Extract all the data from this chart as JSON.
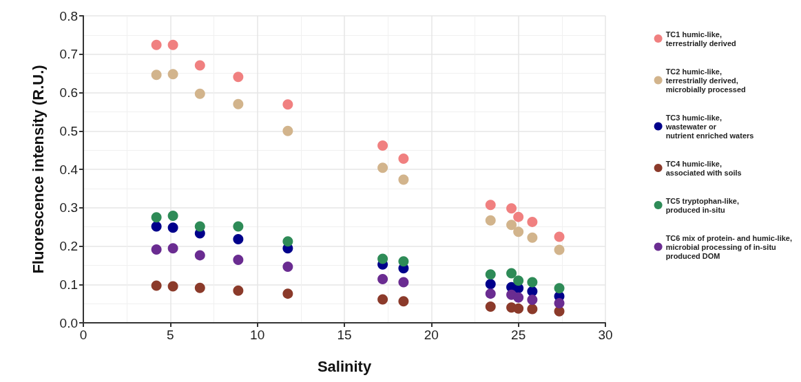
{
  "chart_data": {
    "type": "scatter",
    "xlabel": "Salinity",
    "ylabel": "Fluorescence intensity (R.U.)",
    "x": [
      4.2,
      5.15,
      6.7,
      8.9,
      11.75,
      17.2,
      18.4,
      23.4,
      24.6,
      25.0,
      25.8,
      27.35
    ],
    "series": [
      {
        "name": "TC1 humic-like,\nterrestrially derived",
        "color": "#f08080",
        "values": [
          0.724,
          0.724,
          0.671,
          0.641,
          0.569,
          0.462,
          0.428,
          0.307,
          0.298,
          0.276,
          0.263,
          0.224
        ]
      },
      {
        "name": "TC2 humic-like,\nterrestrially derived,\nmicrobially processed",
        "color": "#d2b48c",
        "values": [
          0.646,
          0.648,
          0.597,
          0.57,
          0.5,
          0.404,
          0.373,
          0.267,
          0.255,
          0.237,
          0.222,
          0.19
        ]
      },
      {
        "name": "TC3 humic-like,\nwastewater or\nnutrient enriched waters",
        "color": "#00008b",
        "values": [
          0.251,
          0.248,
          0.233,
          0.218,
          0.194,
          0.152,
          0.142,
          0.101,
          0.093,
          0.09,
          0.082,
          0.069
        ]
      },
      {
        "name": "TC4 humic-like,\nassociated with soils",
        "color": "#8b3a2a",
        "values": [
          0.097,
          0.095,
          0.091,
          0.084,
          0.076,
          0.061,
          0.056,
          0.042,
          0.04,
          0.037,
          0.036,
          0.03
        ]
      },
      {
        "name": "TC5 tryptophan-like,\nproduced in-situ",
        "color": "#2e8b57",
        "values": [
          0.275,
          0.279,
          0.251,
          0.251,
          0.212,
          0.167,
          0.16,
          0.126,
          0.129,
          0.11,
          0.106,
          0.09
        ]
      },
      {
        "name": "TC6 mix of protein- and humic-like,\nmicrobial processing of in-situ\nproduced DOM",
        "color": "#6a2c91",
        "values": [
          0.191,
          0.194,
          0.176,
          0.164,
          0.146,
          0.114,
          0.106,
          0.076,
          0.073,
          0.066,
          0.06,
          0.051
        ]
      }
    ],
    "xlim": [
      0,
      30
    ],
    "xticks": [
      0,
      5,
      10,
      15,
      20,
      25,
      30
    ],
    "ylim": [
      0,
      0.8
    ],
    "yticks": [
      {
        "value": 0,
        "label": "0.0"
      },
      0.1,
      0.2,
      0.3,
      0.4,
      0.5,
      0.6,
      0.7,
      0.8
    ],
    "grid": true,
    "legend": "right",
    "marker": "circle"
  }
}
